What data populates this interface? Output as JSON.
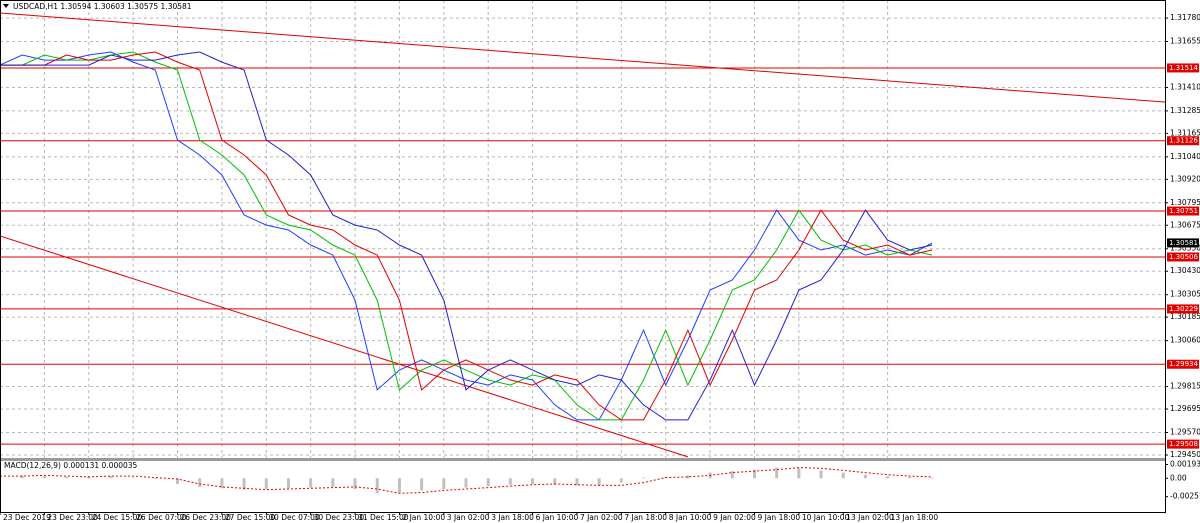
{
  "chart_data": [
    {
      "type": "line",
      "title": "USDCAD,H1 1.30594 1.30603 1.30575 1.30581",
      "x": [
        0,
        4,
        8,
        12,
        16,
        20,
        24,
        28,
        32,
        36,
        40,
        44,
        48,
        52,
        56,
        60,
        64,
        68,
        72,
        76,
        80,
        84,
        88,
        92,
        96,
        100,
        104,
        108,
        112,
        116,
        120,
        124,
        128,
        132,
        136,
        140,
        144,
        148,
        152,
        156,
        160,
        164,
        168
      ],
      "series": [
        {
          "color": "#1f3fff",
          "values": [
            1.31529,
            1.31583,
            1.31556,
            1.31556,
            1.31583,
            1.31599,
            1.31545,
            1.31503,
            1.3113,
            1.3105,
            1.30943,
            1.3073,
            1.30676,
            1.3065,
            1.3057,
            1.30516,
            1.30276,
            1.29797,
            1.29903,
            1.29957,
            1.29903,
            1.2985,
            1.29823,
            1.29877,
            1.2985,
            1.29717,
            1.29637,
            1.29637,
            1.2985,
            1.30116,
            1.29823,
            1.30063,
            1.3033,
            1.30383,
            1.30543,
            1.30756,
            1.30596,
            1.30543,
            1.3057,
            1.30516,
            1.30543,
            1.30516,
            1.3058
          ]
        },
        {
          "color": "#00c000",
          "values": [
            1.31529,
            1.31529,
            1.31583,
            1.31556,
            1.31556,
            1.31583,
            1.31599,
            1.31545,
            1.31503,
            1.3113,
            1.3105,
            1.30943,
            1.3073,
            1.30676,
            1.3065,
            1.3057,
            1.30516,
            1.30276,
            1.29797,
            1.29903,
            1.29957,
            1.29903,
            1.2985,
            1.29823,
            1.29877,
            1.2985,
            1.29717,
            1.29637,
            1.29637,
            1.2985,
            1.30116,
            1.29823,
            1.30063,
            1.3033,
            1.30383,
            1.30543,
            1.30756,
            1.30596,
            1.30543,
            1.3057,
            1.30516,
            1.30543,
            1.30516
          ]
        },
        {
          "color": "#e00000",
          "values": [
            1.31529,
            1.31529,
            1.31529,
            1.31583,
            1.31556,
            1.31556,
            1.31583,
            1.31599,
            1.31545,
            1.31503,
            1.3113,
            1.3105,
            1.30943,
            1.3073,
            1.30676,
            1.3065,
            1.3057,
            1.30516,
            1.30276,
            1.29797,
            1.29903,
            1.29957,
            1.29903,
            1.2985,
            1.29823,
            1.29877,
            1.2985,
            1.29717,
            1.29637,
            1.29637,
            1.2985,
            1.30116,
            1.29823,
            1.30063,
            1.3033,
            1.30383,
            1.30543,
            1.30756,
            1.30596,
            1.30543,
            1.3057,
            1.30516,
            1.30543
          ]
        },
        {
          "color": "#2020d0",
          "values": [
            1.31529,
            1.31529,
            1.31529,
            1.31529,
            1.31529,
            1.31583,
            1.31556,
            1.31556,
            1.31583,
            1.31599,
            1.31545,
            1.31503,
            1.3113,
            1.3105,
            1.30943,
            1.3073,
            1.30676,
            1.3065,
            1.3057,
            1.30516,
            1.30276,
            1.29797,
            1.29903,
            1.29957,
            1.29903,
            1.2985,
            1.29823,
            1.29877,
            1.2985,
            1.29717,
            1.29637,
            1.29637,
            1.2985,
            1.30116,
            1.29823,
            1.30063,
            1.3033,
            1.30383,
            1.30543,
            1.30756,
            1.30596,
            1.30543,
            1.3057
          ]
        }
      ],
      "xlim": [
        0,
        210
      ],
      "ylim": [
        1.29434,
        1.31823
      ],
      "xticks": [
        {
          "value": 0,
          "label": "23 Dec 2019"
        },
        {
          "value": 8,
          "label": "23 Dec 23:00"
        },
        {
          "value": 16,
          "label": "24 Dec 15:00"
        },
        {
          "value": 24,
          "label": "26 Dec 07:00"
        },
        {
          "value": 32,
          "label": "26 Dec 23:00"
        },
        {
          "value": 40,
          "label": "27 Dec 15:00"
        },
        {
          "value": 48,
          "label": "30 Dec 07:00"
        },
        {
          "value": 56,
          "label": "30 Dec 23:00"
        },
        {
          "value": 64,
          "label": "31 Dec 15:00"
        },
        {
          "value": 72,
          "label": "2 Jan 10:00"
        },
        {
          "value": 80,
          "label": "3 Jan 02:00"
        },
        {
          "value": 88,
          "label": "3 Jan 18:00"
        },
        {
          "value": 96,
          "label": "6 Jan 10:00"
        },
        {
          "value": 104,
          "label": "7 Jan 02:00"
        },
        {
          "value": 112,
          "label": "7 Jan 18:00"
        },
        {
          "value": 120,
          "label": "8 Jan 10:00"
        },
        {
          "value": 128,
          "label": "9 Jan 02:00"
        },
        {
          "value": 136,
          "label": "9 Jan 18:00"
        },
        {
          "value": 144,
          "label": "10 Jan 10:00"
        },
        {
          "value": 152,
          "label": "13 Jan 02:00"
        },
        {
          "value": 160,
          "label": "13 Jan 18:00"
        }
      ],
      "yticks": [
        {
          "value": 1.3178,
          "label": "1.31780"
        },
        {
          "value": 1.31655,
          "label": "1.31655"
        },
        {
          "value": 1.3141,
          "label": "1.31410"
        },
        {
          "value": 1.31285,
          "label": "1.31285"
        },
        {
          "value": 1.31165,
          "label": "1.31165"
        },
        {
          "value": 1.3104,
          "label": "1.31040"
        },
        {
          "value": 1.3092,
          "label": "1.30920"
        },
        {
          "value": 1.30795,
          "label": "1.30795"
        },
        {
          "value": 1.30675,
          "label": "1.30675"
        },
        {
          "value": 1.3055,
          "label": "1.30550"
        },
        {
          "value": 1.3043,
          "label": "1.30430"
        },
        {
          "value": 1.30305,
          "label": "1.30305"
        },
        {
          "value": 1.30185,
          "label": "1.30185"
        },
        {
          "value": 1.3006,
          "label": "1.30060"
        },
        {
          "value": 1.29815,
          "label": "1.29815"
        },
        {
          "value": 1.29695,
          "label": "1.29695"
        },
        {
          "value": 1.2957,
          "label": "1.29570"
        },
        {
          "value": 1.2945,
          "label": "1.29450"
        }
      ],
      "grid": true,
      "levels": [
        {
          "value": 1.31514,
          "label": "1.31514"
        },
        {
          "value": 1.31126,
          "label": "1.31126"
        },
        {
          "value": 1.30751,
          "label": "1.30751"
        },
        {
          "value": 1.30506,
          "label": "1.30506"
        },
        {
          "value": 1.30229,
          "label": "1.30229"
        },
        {
          "value": 1.29934,
          "label": "1.29934"
        },
        {
          "value": 1.29508,
          "label": "1.29508"
        }
      ],
      "level_color": "#e00000",
      "current_price": {
        "value": 1.30581,
        "label": "1.30581"
      },
      "trendlines": [
        {
          "x": [
            0,
            210
          ],
          "values": [
            1.31807,
            1.31332
          ]
        },
        {
          "x": [
            0,
            124
          ],
          "values": [
            1.30618,
            1.2944
          ]
        }
      ]
    },
    {
      "type": "macd",
      "title": "MACD(12,26,9) 0.000131 0.000035",
      "x": [
        0,
        4,
        8,
        12,
        16,
        20,
        24,
        28,
        32,
        36,
        40,
        44,
        48,
        52,
        56,
        60,
        64,
        68,
        72,
        76,
        80,
        84,
        88,
        92,
        96,
        100,
        104,
        108,
        112,
        116,
        120,
        124,
        128,
        132,
        136,
        140,
        144,
        148,
        152,
        156,
        160,
        164,
        168
      ],
      "series": [
        {
          "style": "histogram",
          "color": "#c0c0c0",
          "values": [
            0.0003,
            0.0004,
            0.0003,
            0.0002,
            0.0003,
            0.0003,
            0.0001,
            -0.0001,
            -0.0008,
            -0.0012,
            -0.0014,
            -0.0016,
            -0.0015,
            -0.0014,
            -0.0013,
            -0.0012,
            -0.0015,
            -0.0021,
            -0.002,
            -0.0017,
            -0.0015,
            -0.0013,
            -0.0011,
            -0.0009,
            -0.0008,
            -0.0009,
            -0.001,
            -0.001,
            -0.0006,
            0.0001,
            0.0002,
            0.0004,
            0.0008,
            0.001,
            0.0012,
            0.0015,
            0.0014,
            0.0011,
            0.0008,
            0.0005,
            0.0003,
            0.0002,
            0.0001
          ]
        },
        {
          "style": "dotted",
          "color": "#e00000",
          "values": [
            0.0003,
            0.0003,
            0.0004,
            0.0003,
            0.0002,
            0.0003,
            0.0003,
            0.0001,
            -0.0001,
            -0.0008,
            -0.0012,
            -0.0014,
            -0.0016,
            -0.0015,
            -0.0014,
            -0.0013,
            -0.0012,
            -0.0015,
            -0.0021,
            -0.002,
            -0.0017,
            -0.0015,
            -0.0013,
            -0.0011,
            -0.0009,
            -0.0008,
            -0.0009,
            -0.001,
            -0.001,
            -0.0006,
            0.0001,
            0.0002,
            0.0004,
            0.0008,
            0.001,
            0.0012,
            0.0015,
            0.0014,
            0.0011,
            0.0008,
            0.0005,
            0.0003,
            0.0002
          ]
        }
      ],
      "xlim": [
        0,
        210
      ],
      "ylim": [
        -0.00472,
        0.00242
      ],
      "yticks": [
        0.001935,
        {
          "value": 0,
          "label": "0.00"
        },
        -0.00257
      ]
    }
  ]
}
